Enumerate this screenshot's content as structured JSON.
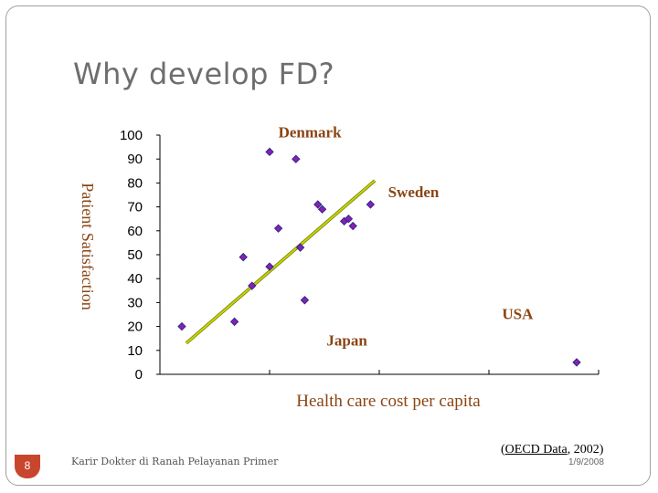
{
  "slide": {
    "title": "Why develop FD?",
    "number": "8",
    "footer": "Karir Dokter di Ranah Pelayanan Primer",
    "source_link": "OECD Data",
    "source_year": ", 2002",
    "date": "1/9/2008"
  },
  "colors": {
    "point_fill": "#8a1fb0",
    "point_stroke": "#2b2b8c",
    "label_color": "#8b4513",
    "trendline": "#c8d400",
    "axis": "#000000"
  },
  "chart_data": {
    "type": "scatter",
    "title": "",
    "xlabel": "Health care cost per capita",
    "ylabel": "Patient Satisfaction",
    "ylim": [
      0,
      100
    ],
    "y_ticks": [
      "0",
      "10",
      "20",
      "30",
      "40",
      "50",
      "60",
      "70",
      "80",
      "90",
      "100"
    ],
    "x_ticks": 4,
    "grid": false,
    "points": [
      {
        "x": 0.05,
        "y": 20
      },
      {
        "x": 0.17,
        "y": 22
      },
      {
        "x": 0.19,
        "y": 49
      },
      {
        "x": 0.21,
        "y": 37
      },
      {
        "x": 0.25,
        "y": 93
      },
      {
        "x": 0.25,
        "y": 45
      },
      {
        "x": 0.27,
        "y": 61
      },
      {
        "x": 0.31,
        "y": 90
      },
      {
        "x": 0.32,
        "y": 53
      },
      {
        "x": 0.33,
        "y": 31
      },
      {
        "x": 0.36,
        "y": 71
      },
      {
        "x": 0.37,
        "y": 69
      },
      {
        "x": 0.42,
        "y": 64
      },
      {
        "x": 0.43,
        "y": 65
      },
      {
        "x": 0.44,
        "y": 62
      },
      {
        "x": 0.48,
        "y": 71
      },
      {
        "x": 0.95,
        "y": 5
      }
    ],
    "trend_line": {
      "x": [
        0.06,
        0.49
      ],
      "y": [
        13,
        81
      ]
    },
    "annotations": [
      {
        "text": "Denmark",
        "x": 0.27,
        "y": 99
      },
      {
        "text": "Sweden",
        "x": 0.52,
        "y": 74
      },
      {
        "text": "USA",
        "x": 0.78,
        "y": 23
      },
      {
        "text": "Japan",
        "x": 0.38,
        "y": 12
      }
    ]
  }
}
